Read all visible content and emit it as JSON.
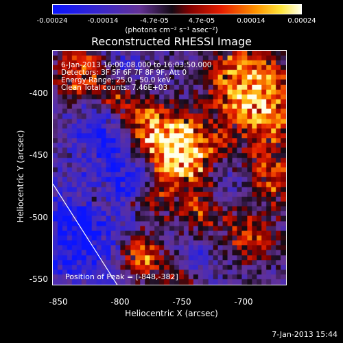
{
  "chart_data": {
    "type": "heatmap",
    "title": "Reconstructed RHESSI Image",
    "xlabel": "Heliocentric X (arcsec)",
    "ylabel": "Heliocentric Y (arcsec)",
    "xlim": [
      -855,
      -665
    ],
    "ylim": [
      -555,
      -365
    ],
    "x_ticks": [
      "-850",
      "-800",
      "-750",
      "-700"
    ],
    "y_ticks": [
      "-400",
      "-450",
      "-500",
      "-550"
    ],
    "colorbar": {
      "range": [
        -0.00024,
        0.00024
      ],
      "ticks": [
        "-0.00024",
        "-0.00014",
        "-4.7e-05",
        "4.7e-05",
        "0.00014",
        "0.00024"
      ],
      "unit_label": "(photons cm⁻² s⁻¹ asec⁻²)"
    },
    "info_lines": [
      "6-Jan-2013 16:00:08.000 to 16:03:50.000",
      "Detectors: 3F 5F 6F 7F 8F 9F, Att 0",
      "Energy Range: 25.0 - 50.0 keV",
      "Clean    Total counts: 7.46E+03"
    ],
    "peak_label": "Position of Peak = [-848,-382]",
    "peak": [
      -848,
      -382
    ]
  },
  "footer": {
    "date": "7-Jan-2013 15:44"
  },
  "colors": {
    "limb_line": "#ffffff",
    "background": "#000000"
  }
}
